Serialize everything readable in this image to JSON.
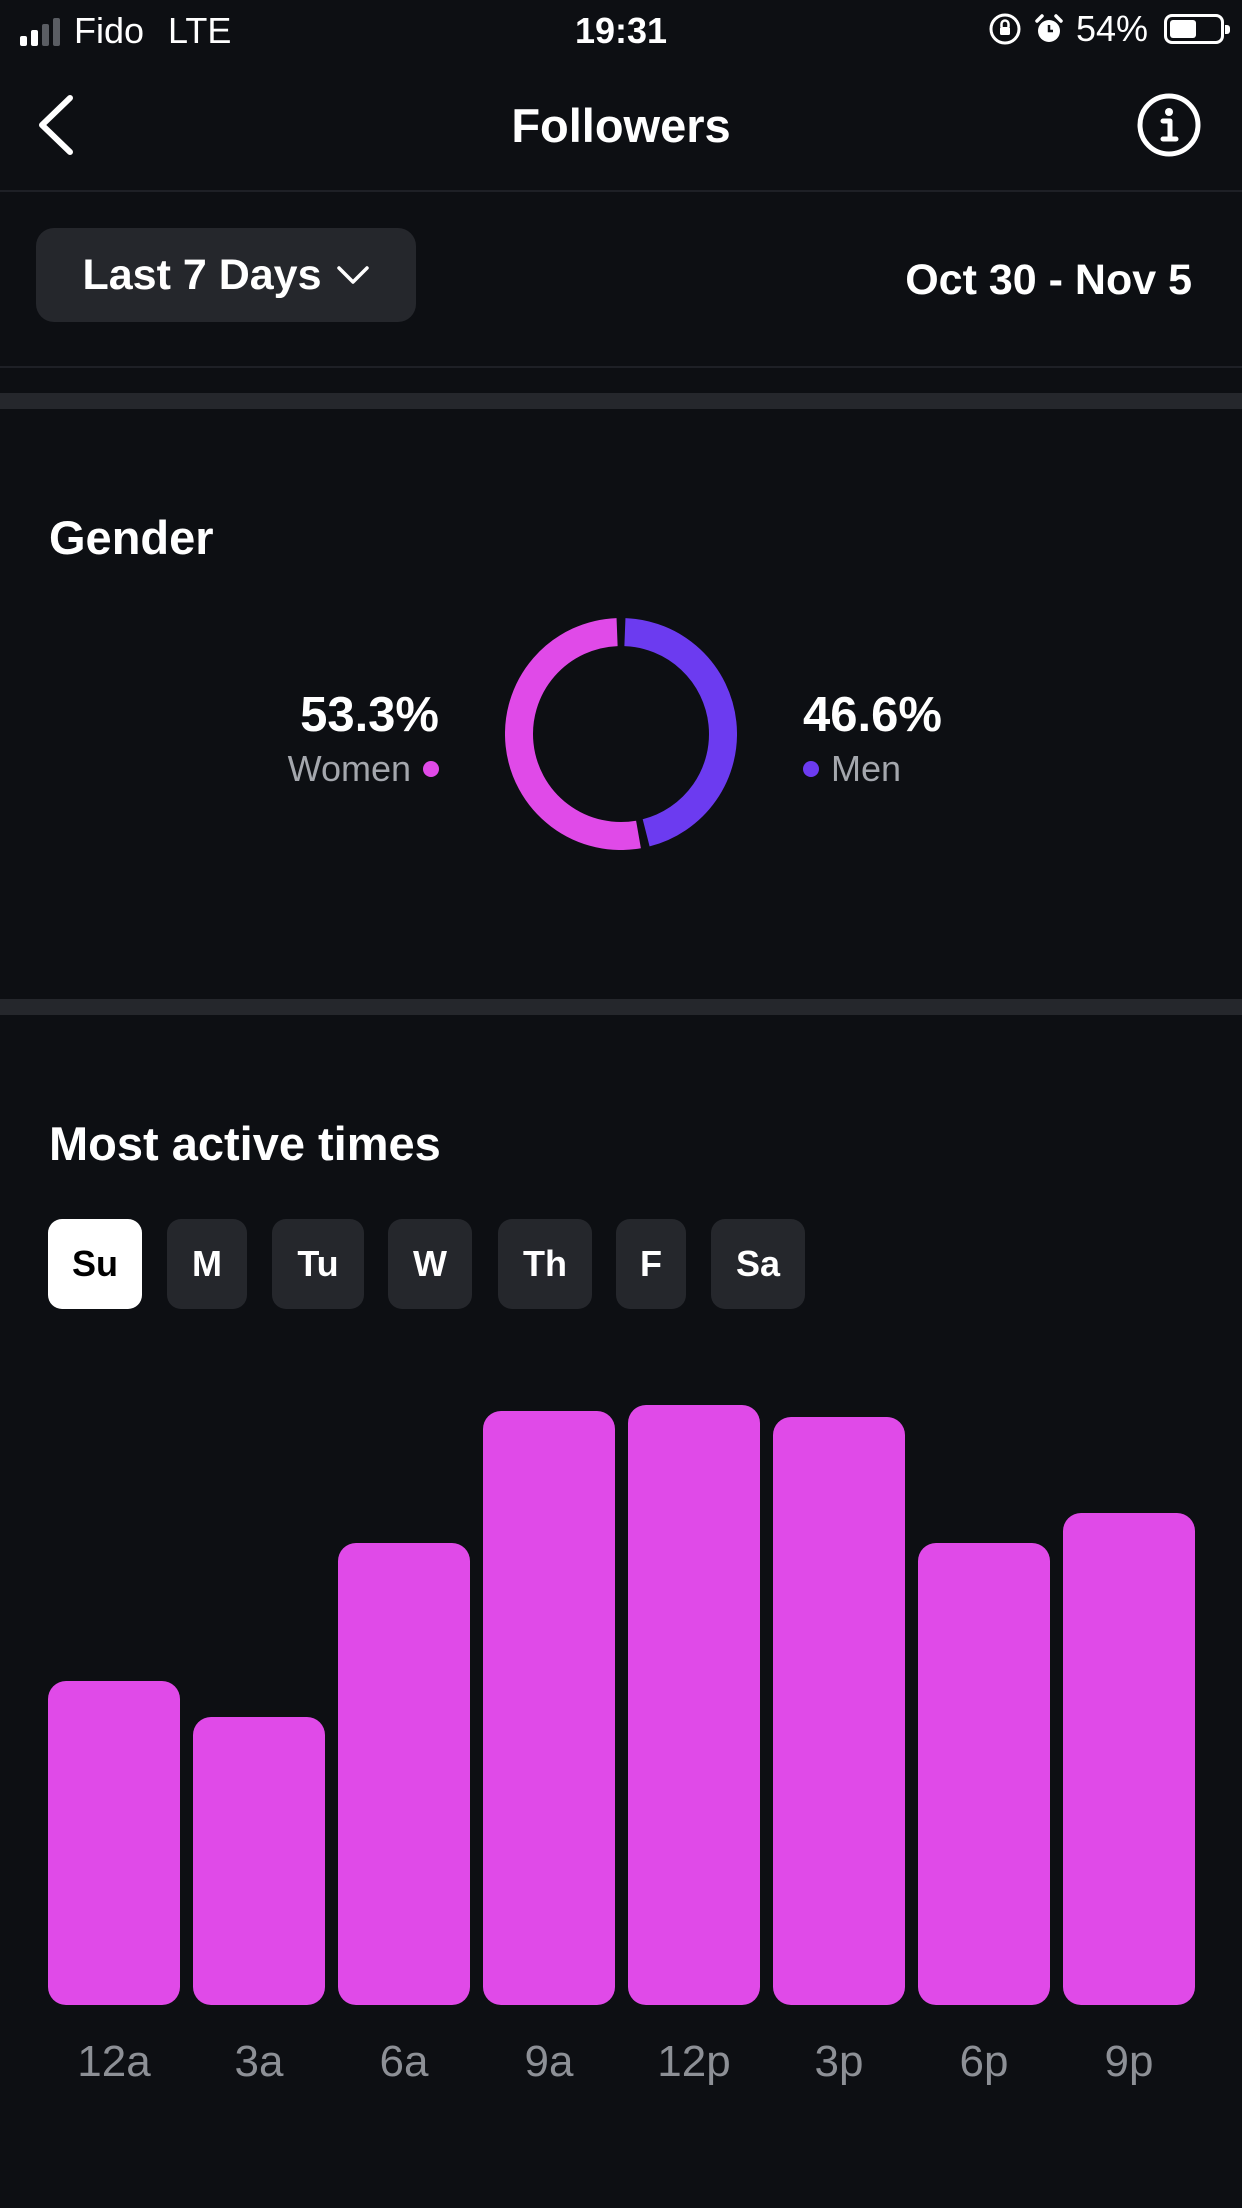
{
  "status_bar": {
    "carrier": "Fido",
    "network": "LTE",
    "time": "19:31",
    "battery_text": "54%",
    "battery_level": 0.54
  },
  "nav": {
    "title": "Followers"
  },
  "filter": {
    "range_label": "Last 7 Days",
    "date_range": "Oct 30 - Nov 5"
  },
  "gender": {
    "title": "Gender",
    "women": {
      "pct": "53.3%",
      "label": "Women",
      "value": 53.3,
      "color": "#e04ae8"
    },
    "men": {
      "pct": "46.6%",
      "label": "Men",
      "value": 46.6,
      "color": "#6c3bf0"
    }
  },
  "active_times": {
    "title": "Most active times",
    "days": [
      "Su",
      "M",
      "Tu",
      "W",
      "Th",
      "F",
      "Sa"
    ],
    "selected_day": "Su"
  },
  "chart_data": {
    "type": "bar",
    "title": "Most active times",
    "categories": [
      "12a",
      "3a",
      "6a",
      "9a",
      "12p",
      "3p",
      "6p",
      "9p"
    ],
    "values": [
      54,
      48,
      77,
      99,
      100,
      98,
      77,
      82
    ],
    "ylim": [
      0,
      100
    ],
    "color": "#e04ae8",
    "xlabel": "",
    "ylabel": ""
  }
}
